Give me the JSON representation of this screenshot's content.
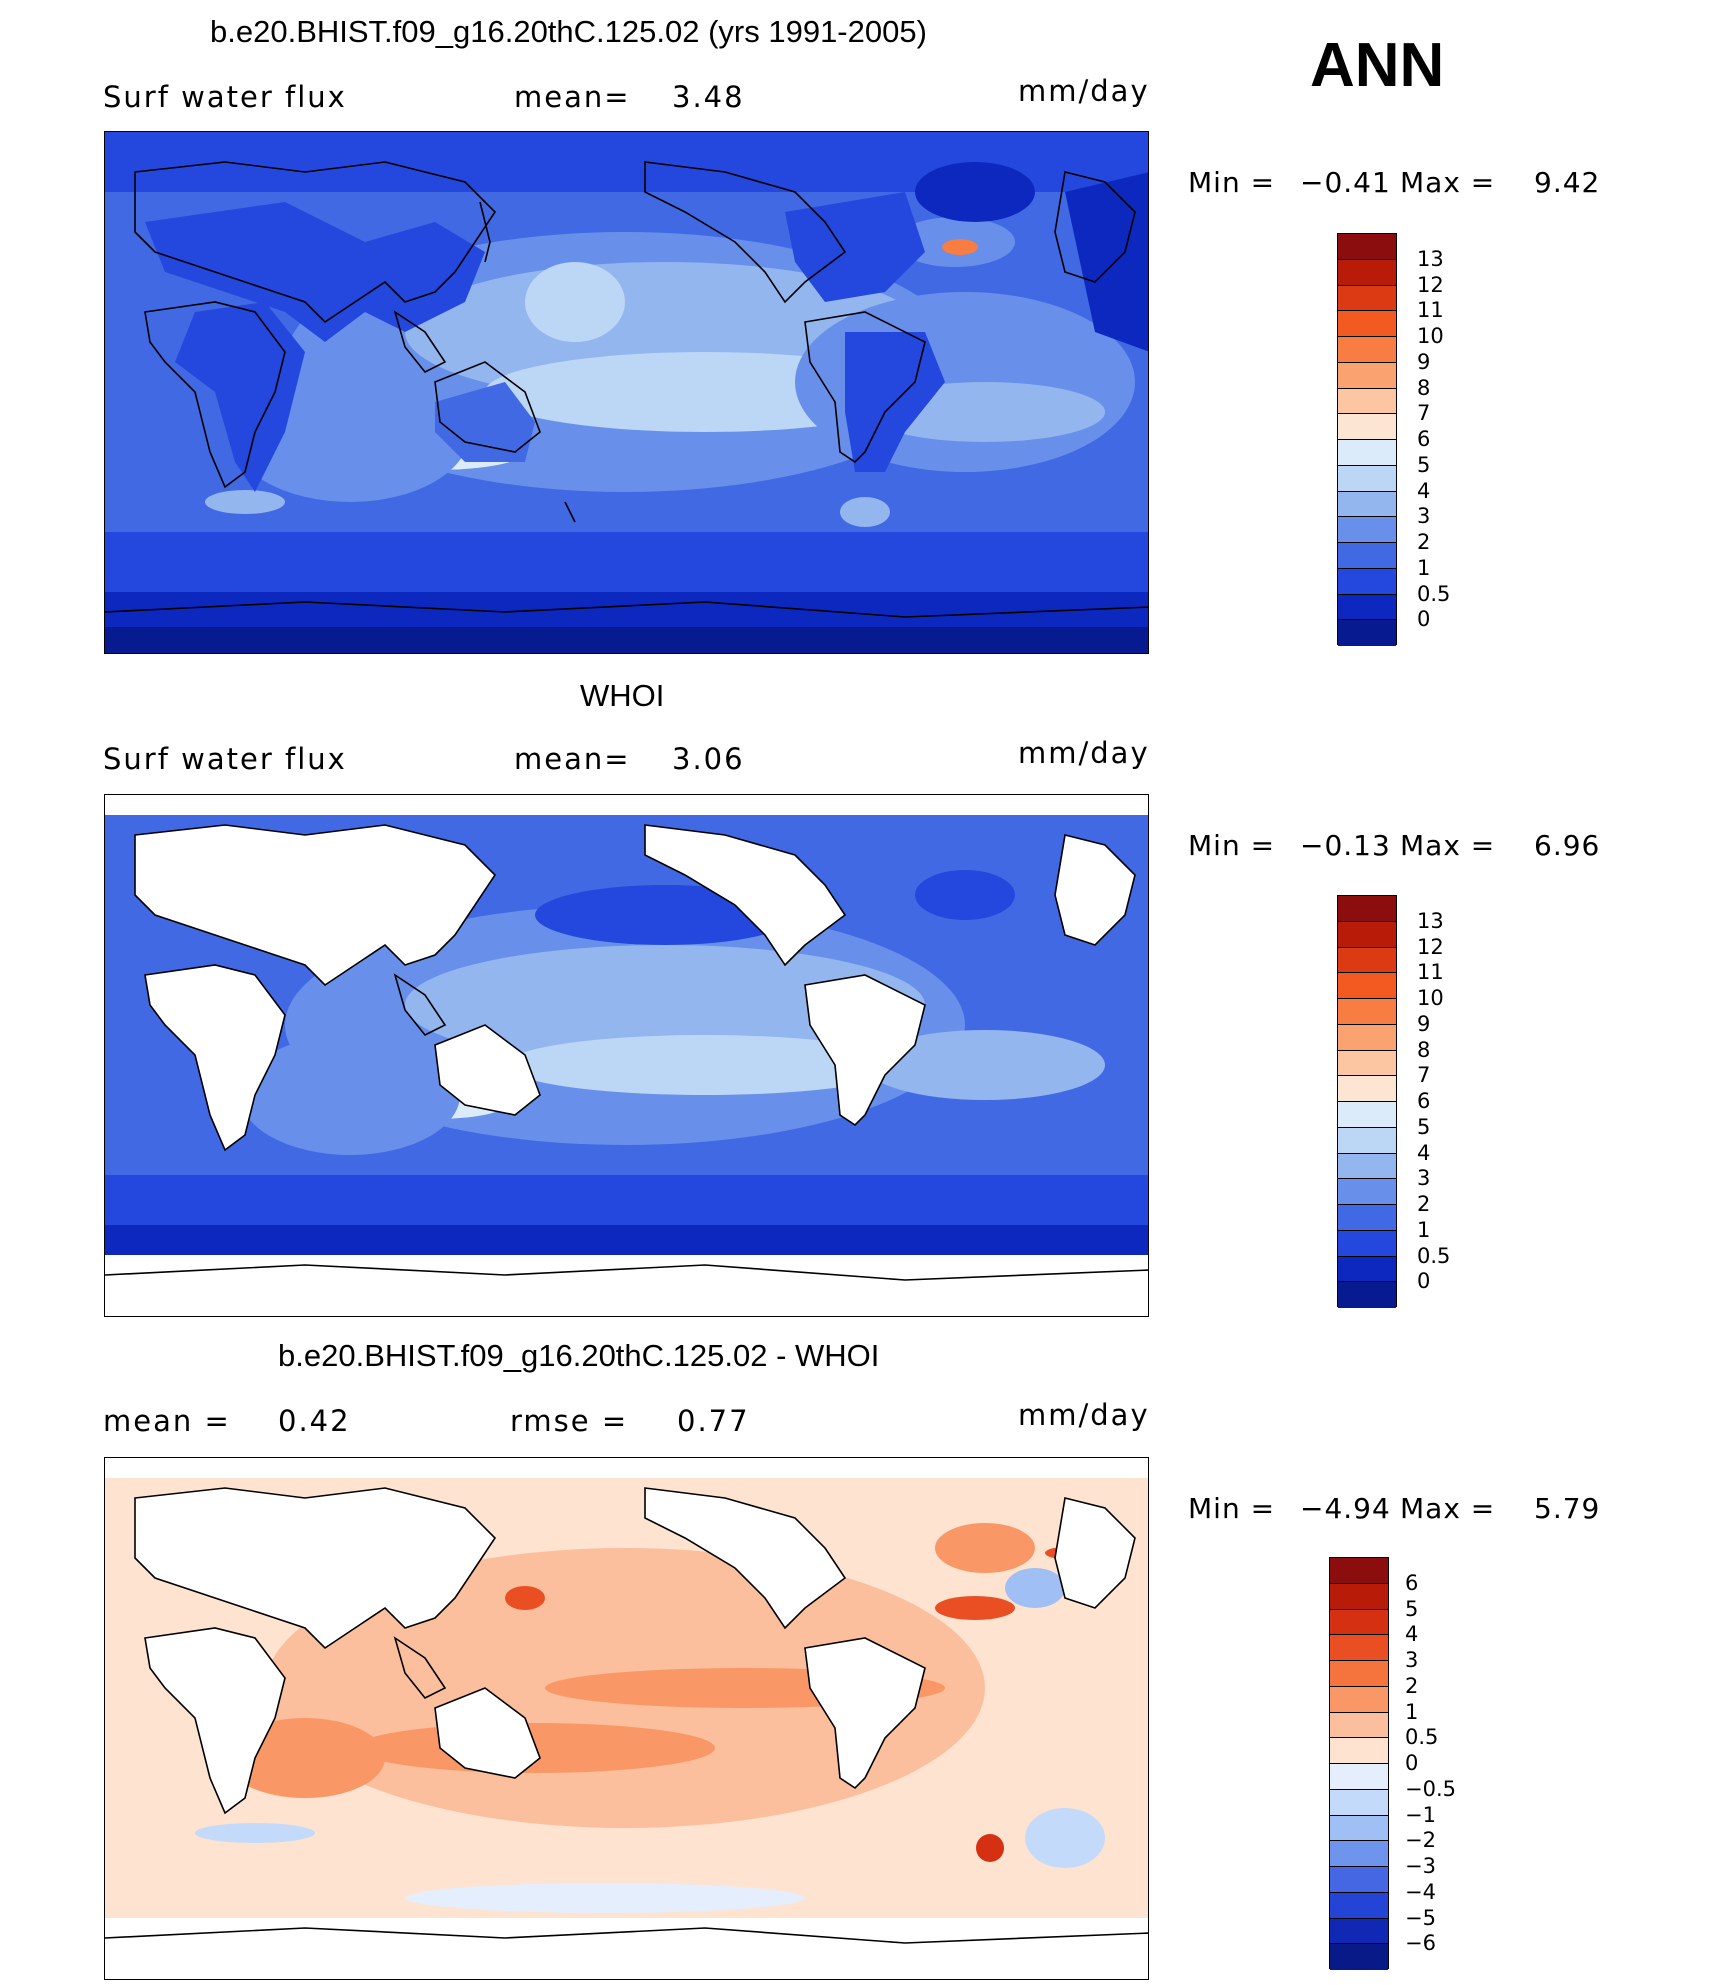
{
  "season": "ANN",
  "panels": [
    {
      "id": "model",
      "title": "b.e20.BHIST.f09_g16.20thC.125.02 (yrs 1991-2005)",
      "left_label": "Surf water flux",
      "mid_label": "mean=",
      "mid_value": "3.48",
      "units": "mm/day",
      "min_label": "Min =",
      "min_value": "−0.41",
      "max_label": "Max =",
      "max_value": "9.42",
      "colorbar_ticks": [
        "13",
        "12",
        "11",
        "10",
        "9",
        "8",
        "7",
        "6",
        "5",
        "4",
        "3",
        "2",
        "1",
        "0.5",
        "0"
      ],
      "colorbar_colors": [
        "#8b0d0d",
        "#b81c08",
        "#dc3a12",
        "#f25a22",
        "#f77d43",
        "#fba271",
        "#fdc6a2",
        "#fde5d3",
        "#dcebfa",
        "#bcd6f6",
        "#93b6ef",
        "#6890ea",
        "#4169e4",
        "#2447dd",
        "#0d28bf",
        "#071a8f"
      ]
    },
    {
      "id": "obs",
      "title": "WHOI",
      "left_label": "Surf water flux",
      "mid_label": "mean=",
      "mid_value": "3.06",
      "units": "mm/day",
      "min_label": "Min =",
      "min_value": "−0.13",
      "max_label": "Max =",
      "max_value": "6.96",
      "colorbar_ticks": [
        "13",
        "12",
        "11",
        "10",
        "9",
        "8",
        "7",
        "6",
        "5",
        "4",
        "3",
        "2",
        "1",
        "0.5",
        "0"
      ],
      "colorbar_colors": [
        "#8b0d0d",
        "#b81c08",
        "#dc3a12",
        "#f25a22",
        "#f77d43",
        "#fba271",
        "#fdc6a2",
        "#fde5d3",
        "#dcebfa",
        "#bcd6f6",
        "#93b6ef",
        "#6890ea",
        "#4169e4",
        "#2447dd",
        "#0d28bf",
        "#071a8f"
      ]
    },
    {
      "id": "diff",
      "title": "b.e20.BHIST.f09_g16.20thC.125.02 - WHOI",
      "left_label": "mean =",
      "left_value": "0.42",
      "mid_label": "rmse =",
      "mid_value": "0.77",
      "units": "mm/day",
      "min_label": "Min =",
      "min_value": "−4.94",
      "max_label": "Max =",
      "max_value": "5.79",
      "colorbar_ticks": [
        "6",
        "5",
        "4",
        "3",
        "2",
        "1",
        "0.5",
        "0",
        "−0.5",
        "−1",
        "−2",
        "−3",
        "−4",
        "−5",
        "−6"
      ],
      "colorbar_colors": [
        "#8b0d0d",
        "#b81c08",
        "#d63012",
        "#ea4f24",
        "#f5733d",
        "#f99866",
        "#fbbf9d",
        "#fde3d0",
        "#e4eefc",
        "#c4dafa",
        "#9fbff5",
        "#6f94ee",
        "#4667e4",
        "#2444d6",
        "#1128b5",
        "#071a88"
      ]
    }
  ]
}
